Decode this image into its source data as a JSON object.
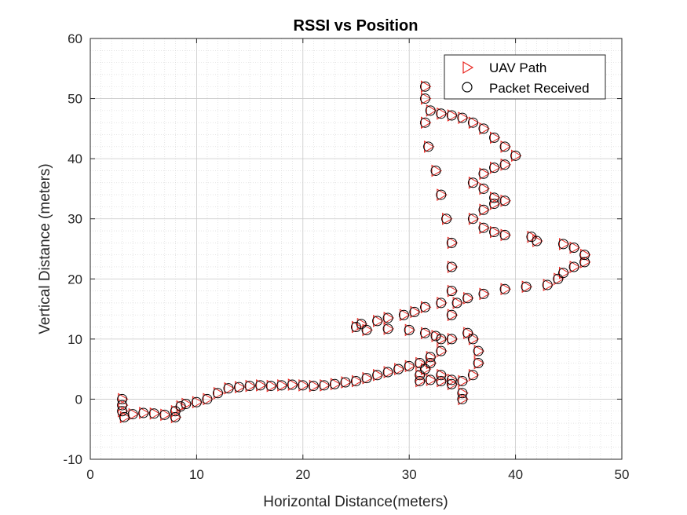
{
  "chart_data": {
    "type": "scatter",
    "title": "RSSI vs Position",
    "xlabel": "Horizontal Distance(meters)",
    "ylabel": "Vertical Distance (meters)",
    "xlim": [
      0,
      50
    ],
    "ylim": [
      -10,
      60
    ],
    "xticks": [
      0,
      10,
      20,
      30,
      40,
      50
    ],
    "yticks": [
      -10,
      0,
      10,
      20,
      30,
      40,
      50,
      60
    ],
    "xtick_labels": [
      "0",
      "10",
      "20",
      "30",
      "40",
      "50"
    ],
    "ytick_labels": [
      "-10",
      "0",
      "10",
      "20",
      "30",
      "40",
      "50",
      "60"
    ],
    "grid": true,
    "minor_grid": true,
    "legend_position": "top-right",
    "series": [
      {
        "name": "UAV Path",
        "marker": "triangle-right",
        "color": "#e8251f",
        "points": [
          [
            3.0,
            0.0
          ],
          [
            3.0,
            -1.0
          ],
          [
            3.0,
            -2.0
          ],
          [
            3.2,
            -3.0
          ],
          [
            4.0,
            -2.5
          ],
          [
            5.0,
            -2.3
          ],
          [
            6.0,
            -2.4
          ],
          [
            7.0,
            -2.6
          ],
          [
            8.0,
            -3.0
          ],
          [
            8.0,
            -2.0
          ],
          [
            8.5,
            -1.2
          ],
          [
            9.0,
            -0.8
          ],
          [
            10.0,
            -0.5
          ],
          [
            11.0,
            0.0
          ],
          [
            12.0,
            1.0
          ],
          [
            13.0,
            1.8
          ],
          [
            14.0,
            2.0
          ],
          [
            15.0,
            2.2
          ],
          [
            16.0,
            2.3
          ],
          [
            17.0,
            2.2
          ],
          [
            18.0,
            2.3
          ],
          [
            19.0,
            2.4
          ],
          [
            20.0,
            2.3
          ],
          [
            21.0,
            2.2
          ],
          [
            22.0,
            2.3
          ],
          [
            23.0,
            2.5
          ],
          [
            24.0,
            2.8
          ],
          [
            25.0,
            3.0
          ],
          [
            26.0,
            3.5
          ],
          [
            27.0,
            4.0
          ],
          [
            28.0,
            4.5
          ],
          [
            29.0,
            5.0
          ],
          [
            30.0,
            5.5
          ],
          [
            31.0,
            6.0
          ],
          [
            32.0,
            7.0
          ],
          [
            33.0,
            8.0
          ],
          [
            34.0,
            10.0
          ],
          [
            34.0,
            14.0
          ],
          [
            34.0,
            18.0
          ],
          [
            34.0,
            22.0
          ],
          [
            34.0,
            26.0
          ],
          [
            33.5,
            30.0
          ],
          [
            33.0,
            34.0
          ],
          [
            32.5,
            38.0
          ],
          [
            31.8,
            42.0
          ],
          [
            31.5,
            46.0
          ],
          [
            31.5,
            50.0
          ],
          [
            31.5,
            52.0
          ],
          [
            32.0,
            48.0
          ],
          [
            33.0,
            47.5
          ],
          [
            34.0,
            47.2
          ],
          [
            35.0,
            46.8
          ],
          [
            36.0,
            46.0
          ],
          [
            37.0,
            45.0
          ],
          [
            38.0,
            43.5
          ],
          [
            39.0,
            42.0
          ],
          [
            40.0,
            40.5
          ],
          [
            39.0,
            39.0
          ],
          [
            38.0,
            38.5
          ],
          [
            37.0,
            37.5
          ],
          [
            36.0,
            36.0
          ],
          [
            37.0,
            35.0
          ],
          [
            38.0,
            33.5
          ],
          [
            39.0,
            33.0
          ],
          [
            38.0,
            32.5
          ],
          [
            37.0,
            31.5
          ],
          [
            36.0,
            30.0
          ],
          [
            37.0,
            28.5
          ],
          [
            38.0,
            27.8
          ],
          [
            39.0,
            27.3
          ],
          [
            41.5,
            27.0
          ],
          [
            42.0,
            26.3
          ],
          [
            44.5,
            25.8
          ],
          [
            45.5,
            25.2
          ],
          [
            46.5,
            24.0
          ],
          [
            46.5,
            22.8
          ],
          [
            45.5,
            22.0
          ],
          [
            44.5,
            21.0
          ],
          [
            44.0,
            20.0
          ],
          [
            43.0,
            19.0
          ],
          [
            41.0,
            18.7
          ],
          [
            39.0,
            18.3
          ],
          [
            37.0,
            17.5
          ],
          [
            35.5,
            16.8
          ],
          [
            34.5,
            16.0
          ],
          [
            33.0,
            16.0
          ],
          [
            31.5,
            15.3
          ],
          [
            30.5,
            14.5
          ],
          [
            29.5,
            14.0
          ],
          [
            28.0,
            13.5
          ],
          [
            27.0,
            13.0
          ],
          [
            25.5,
            12.5
          ],
          [
            25.0,
            12.0
          ],
          [
            26.0,
            11.5
          ],
          [
            28.0,
            11.7
          ],
          [
            30.0,
            11.5
          ],
          [
            31.5,
            11.0
          ],
          [
            32.5,
            10.5
          ],
          [
            33.0,
            10.0
          ],
          [
            35.5,
            11.0
          ],
          [
            36.0,
            10.0
          ],
          [
            36.5,
            8.0
          ],
          [
            36.5,
            6.0
          ],
          [
            36.0,
            4.0
          ],
          [
            35.0,
            3.0
          ],
          [
            35.0,
            1.0
          ],
          [
            35.0,
            0.0
          ],
          [
            34.0,
            3.2
          ],
          [
            33.0,
            3.0
          ],
          [
            32.0,
            3.2
          ],
          [
            31.0,
            3.0
          ],
          [
            31.0,
            4.0
          ],
          [
            31.5,
            5.0
          ],
          [
            32.0,
            6.0
          ],
          [
            33.0,
            4.0
          ],
          [
            34.0,
            2.5
          ]
        ]
      },
      {
        "name": "Packet Received",
        "marker": "circle",
        "color": "#000000",
        "points": [
          [
            3.0,
            0.0
          ],
          [
            3.0,
            -1.0
          ],
          [
            3.0,
            -2.0
          ],
          [
            3.2,
            -3.0
          ],
          [
            4.0,
            -2.5
          ],
          [
            5.0,
            -2.3
          ],
          [
            6.0,
            -2.4
          ],
          [
            7.0,
            -2.6
          ],
          [
            8.0,
            -3.0
          ],
          [
            8.0,
            -2.0
          ],
          [
            8.5,
            -1.2
          ],
          [
            9.0,
            -0.8
          ],
          [
            10.0,
            -0.5
          ],
          [
            11.0,
            0.0
          ],
          [
            12.0,
            1.0
          ],
          [
            13.0,
            1.8
          ],
          [
            14.0,
            2.0
          ],
          [
            15.0,
            2.2
          ],
          [
            16.0,
            2.3
          ],
          [
            17.0,
            2.2
          ],
          [
            18.0,
            2.3
          ],
          [
            19.0,
            2.4
          ],
          [
            20.0,
            2.3
          ],
          [
            21.0,
            2.2
          ],
          [
            22.0,
            2.3
          ],
          [
            23.0,
            2.5
          ],
          [
            24.0,
            2.8
          ],
          [
            25.0,
            3.0
          ],
          [
            26.0,
            3.5
          ],
          [
            27.0,
            4.0
          ],
          [
            28.0,
            4.5
          ],
          [
            29.0,
            5.0
          ],
          [
            30.0,
            5.5
          ],
          [
            31.0,
            6.0
          ],
          [
            32.0,
            7.0
          ],
          [
            33.0,
            8.0
          ],
          [
            34.0,
            10.0
          ],
          [
            34.0,
            14.0
          ],
          [
            34.0,
            18.0
          ],
          [
            34.0,
            22.0
          ],
          [
            34.0,
            26.0
          ],
          [
            33.5,
            30.0
          ],
          [
            33.0,
            34.0
          ],
          [
            32.5,
            38.0
          ],
          [
            31.8,
            42.0
          ],
          [
            31.5,
            46.0
          ],
          [
            31.5,
            50.0
          ],
          [
            31.5,
            52.0
          ],
          [
            32.0,
            48.0
          ],
          [
            33.0,
            47.5
          ],
          [
            34.0,
            47.2
          ],
          [
            35.0,
            46.8
          ],
          [
            36.0,
            46.0
          ],
          [
            37.0,
            45.0
          ],
          [
            38.0,
            43.5
          ],
          [
            39.0,
            42.0
          ],
          [
            40.0,
            40.5
          ],
          [
            39.0,
            39.0
          ],
          [
            38.0,
            38.5
          ],
          [
            37.0,
            37.5
          ],
          [
            36.0,
            36.0
          ],
          [
            37.0,
            35.0
          ],
          [
            38.0,
            33.5
          ],
          [
            39.0,
            33.0
          ],
          [
            38.0,
            32.5
          ],
          [
            37.0,
            31.5
          ],
          [
            36.0,
            30.0
          ],
          [
            37.0,
            28.5
          ],
          [
            38.0,
            27.8
          ],
          [
            39.0,
            27.3
          ],
          [
            41.5,
            27.0
          ],
          [
            42.0,
            26.3
          ],
          [
            44.5,
            25.8
          ],
          [
            45.5,
            25.2
          ],
          [
            46.5,
            24.0
          ],
          [
            46.5,
            22.8
          ],
          [
            45.5,
            22.0
          ],
          [
            44.5,
            21.0
          ],
          [
            44.0,
            20.0
          ],
          [
            43.0,
            19.0
          ],
          [
            41.0,
            18.7
          ],
          [
            39.0,
            18.3
          ],
          [
            37.0,
            17.5
          ],
          [
            35.5,
            16.8
          ],
          [
            34.5,
            16.0
          ],
          [
            33.0,
            16.0
          ],
          [
            31.5,
            15.3
          ],
          [
            30.5,
            14.5
          ],
          [
            29.5,
            14.0
          ],
          [
            28.0,
            13.5
          ],
          [
            27.0,
            13.0
          ],
          [
            25.5,
            12.5
          ],
          [
            25.0,
            12.0
          ],
          [
            26.0,
            11.5
          ],
          [
            28.0,
            11.7
          ],
          [
            30.0,
            11.5
          ],
          [
            31.5,
            11.0
          ],
          [
            32.5,
            10.5
          ],
          [
            33.0,
            10.0
          ],
          [
            35.5,
            11.0
          ],
          [
            36.0,
            10.0
          ],
          [
            36.5,
            8.0
          ],
          [
            36.5,
            6.0
          ],
          [
            36.0,
            4.0
          ],
          [
            35.0,
            3.0
          ],
          [
            35.0,
            1.0
          ],
          [
            35.0,
            0.0
          ],
          [
            34.0,
            3.2
          ],
          [
            33.0,
            3.0
          ],
          [
            32.0,
            3.2
          ],
          [
            31.0,
            3.0
          ],
          [
            31.0,
            4.0
          ],
          [
            31.5,
            5.0
          ],
          [
            32.0,
            6.0
          ],
          [
            33.0,
            4.0
          ],
          [
            34.0,
            2.5
          ]
        ]
      }
    ]
  }
}
